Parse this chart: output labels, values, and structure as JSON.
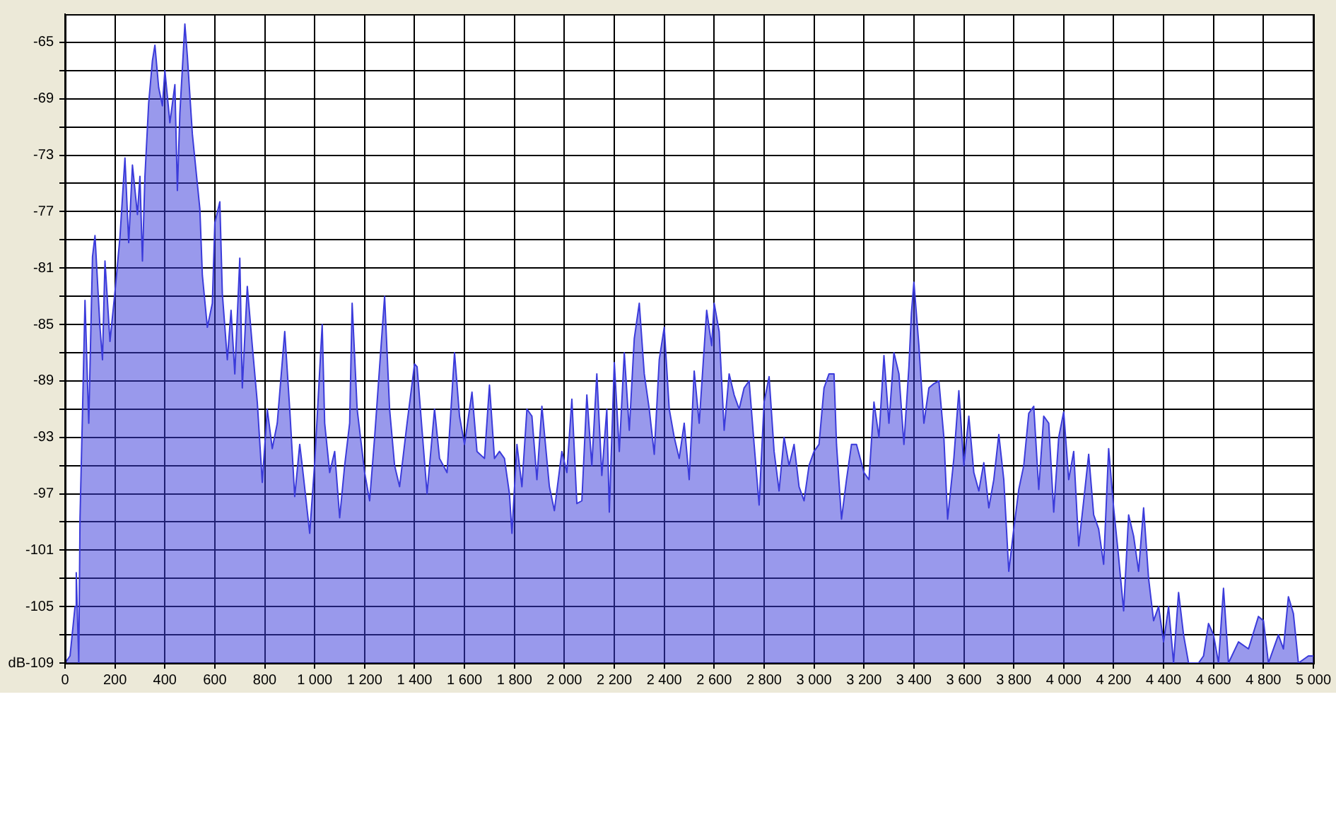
{
  "chart_data": {
    "type": "area",
    "ylabel": "dB",
    "x": [
      0,
      20,
      40,
      45,
      55,
      60,
      70,
      80,
      95,
      110,
      120,
      140,
      150,
      160,
      180,
      200,
      220,
      240,
      255,
      270,
      290,
      300,
      310,
      320,
      335,
      350,
      360,
      375,
      390,
      400,
      420,
      440,
      450,
      460,
      480,
      490,
      510,
      540,
      550,
      570,
      590,
      600,
      620,
      630,
      650,
      665,
      680,
      700,
      710,
      730,
      750,
      770,
      790,
      810,
      830,
      850,
      880,
      900,
      920,
      940,
      950,
      980,
      1000,
      1030,
      1040,
      1060,
      1080,
      1100,
      1120,
      1140,
      1150,
      1170,
      1200,
      1220,
      1240,
      1260,
      1280,
      1300,
      1320,
      1340,
      1370,
      1400,
      1410,
      1430,
      1450,
      1480,
      1500,
      1530,
      1560,
      1580,
      1600,
      1630,
      1650,
      1680,
      1700,
      1720,
      1740,
      1760,
      1780,
      1790,
      1810,
      1830,
      1850,
      1870,
      1890,
      1910,
      1940,
      1960,
      1990,
      2010,
      2030,
      2050,
      2070,
      2090,
      2110,
      2130,
      2150,
      2170,
      2180,
      2200,
      2220,
      2240,
      2260,
      2280,
      2300,
      2320,
      2340,
      2360,
      2380,
      2400,
      2420,
      2440,
      2460,
      2480,
      2500,
      2520,
      2540,
      2570,
      2590,
      2600,
      2620,
      2640,
      2660,
      2680,
      2700,
      2720,
      2740,
      2760,
      2780,
      2800,
      2820,
      2840,
      2860,
      2880,
      2900,
      2920,
      2940,
      2960,
      2980,
      3000,
      3020,
      3040,
      3060,
      3080,
      3090,
      3110,
      3130,
      3150,
      3170,
      3200,
      3220,
      3240,
      3260,
      3280,
      3300,
      3320,
      3340,
      3360,
      3380,
      3390,
      3400,
      3420,
      3440,
      3460,
      3480,
      3500,
      3520,
      3535,
      3560,
      3580,
      3600,
      3620,
      3640,
      3660,
      3680,
      3700,
      3720,
      3740,
      3760,
      3780,
      3800,
      3820,
      3840,
      3860,
      3880,
      3900,
      3920,
      3940,
      3960,
      3980,
      4000,
      4020,
      4040,
      4060,
      4080,
      4100,
      4120,
      4140,
      4160,
      4180,
      4200,
      4220,
      4240,
      4260,
      4280,
      4300,
      4320,
      4340,
      4360,
      4380,
      4400,
      4420,
      4440,
      4460,
      4480,
      4500,
      4540,
      4560,
      4580,
      4600,
      4620,
      4640,
      4660,
      4700,
      4740,
      4780,
      4800,
      4820,
      4860,
      4880,
      4900,
      4920,
      4940,
      4980,
      5000
    ],
    "series": [
      {
        "color": "#3b3bdb",
        "values": [
          -109,
          -108.5,
          -105,
          -102.6,
          -109,
          -98.7,
          -91.2,
          -83.3,
          -92,
          -80.2,
          -78.7,
          -85.2,
          -87.5,
          -80.5,
          -86.2,
          -82.7,
          -78.8,
          -73.2,
          -79.2,
          -73.7,
          -77.2,
          -74.5,
          -80.5,
          -74.5,
          -69.3,
          -66.3,
          -65.2,
          -68.2,
          -69.5,
          -67,
          -70.7,
          -68,
          -75.5,
          -70,
          -63.7,
          -66,
          -71.5,
          -76.8,
          -81.5,
          -85.2,
          -83.5,
          -77.8,
          -76.3,
          -82.8,
          -87.5,
          -84,
          -88.5,
          -80.3,
          -89.5,
          -82.3,
          -86.5,
          -90.5,
          -96.2,
          -91,
          -93.8,
          -92,
          -85.5,
          -91,
          -97.2,
          -93.5,
          -95,
          -99.8,
          -94.8,
          -85,
          -92,
          -95.5,
          -94,
          -98.7,
          -95,
          -92,
          -83.5,
          -91,
          -95.5,
          -97.5,
          -93,
          -88,
          -83,
          -91,
          -95,
          -96.5,
          -92,
          -87.8,
          -88,
          -92.5,
          -97,
          -91,
          -94.5,
          -95.5,
          -87,
          -91.5,
          -93.5,
          -89.8,
          -94,
          -94.5,
          -89.3,
          -94.5,
          -94,
          -94.5,
          -97,
          -99.8,
          -93.5,
          -96.5,
          -91,
          -91.5,
          -96,
          -90.8,
          -96.5,
          -98.2,
          -94,
          -95.5,
          -90.3,
          -97.7,
          -97.5,
          -90,
          -95,
          -88.5,
          -95.7,
          -91,
          -98.3,
          -87.7,
          -94,
          -87,
          -92.5,
          -86,
          -83.5,
          -88.5,
          -91,
          -94.2,
          -87.5,
          -85.2,
          -91,
          -93,
          -94.5,
          -92,
          -96,
          -88.3,
          -92,
          -84,
          -86.5,
          -83.5,
          -85.5,
          -92.5,
          -88.5,
          -90,
          -91,
          -89.5,
          -89,
          -93.5,
          -97.8,
          -90.5,
          -88.7,
          -94,
          -96.8,
          -93,
          -95,
          -93.5,
          -96.5,
          -97.5,
          -95,
          -94,
          -93.5,
          -89.5,
          -88.5,
          -88.5,
          -93.5,
          -98.8,
          -96,
          -93.5,
          -93.5,
          -95.5,
          -96,
          -90.5,
          -93,
          -87.2,
          -92,
          -87,
          -88.5,
          -93.5,
          -88,
          -84.2,
          -82,
          -86.5,
          -92,
          -89.5,
          -89.2,
          -89,
          -93,
          -98.8,
          -94.5,
          -89.7,
          -95,
          -91.5,
          -95.5,
          -96.8,
          -94.8,
          -98,
          -96,
          -92.8,
          -96,
          -102.5,
          -99.5,
          -96.7,
          -95,
          -91.3,
          -90.8,
          -96.7,
          -91.5,
          -92,
          -98.3,
          -93,
          -91.2,
          -96,
          -94,
          -100.7,
          -97.5,
          -94.2,
          -98.5,
          -99.5,
          -102,
          -93.8,
          -98,
          -101.5,
          -105.3,
          -98.5,
          -100,
          -102.5,
          -98,
          -103,
          -106,
          -105,
          -107.5,
          -105,
          -109,
          -104,
          -107,
          -109,
          -109,
          -108.5,
          -106.2,
          -107,
          -109,
          -103.7,
          -109,
          -107.5,
          -108,
          -105.7,
          -106,
          -109,
          -107,
          -108,
          -104.3,
          -105.5,
          -109,
          -108.5,
          -108.5
        ]
      }
    ],
    "xlim": [
      0,
      5000
    ],
    "ylim": [
      -109,
      -63
    ],
    "xticks": [
      0,
      200,
      400,
      600,
      800,
      {
        "value": 1000,
        "label": "1 000"
      },
      {
        "value": 1200,
        "label": "1 200"
      },
      {
        "value": 1400,
        "label": "1 400"
      },
      {
        "value": 1600,
        "label": "1 600"
      },
      {
        "value": 1800,
        "label": "1 800"
      },
      {
        "value": 2000,
        "label": "2 000"
      },
      {
        "value": 2200,
        "label": "2 200"
      },
      {
        "value": 2400,
        "label": "2 400"
      },
      {
        "value": 2600,
        "label": "2 600"
      },
      {
        "value": 2800,
        "label": "2 800"
      },
      {
        "value": 3000,
        "label": "3 000"
      },
      {
        "value": 3200,
        "label": "3 200"
      },
      {
        "value": 3400,
        "label": "3 400"
      },
      {
        "value": 3600,
        "label": "3 600"
      },
      {
        "value": 3800,
        "label": "3 800"
      },
      {
        "value": 4000,
        "label": "4 000"
      },
      {
        "value": 4200,
        "label": "4 200"
      },
      {
        "value": 4400,
        "label": "4 400"
      },
      {
        "value": 4600,
        "label": "4 600"
      },
      {
        "value": 4800,
        "label": "4 800"
      },
      {
        "value": 5000,
        "label": "5 000"
      }
    ],
    "yticks": [
      -109,
      {
        "value": -107,
        "label": null
      },
      -105,
      {
        "value": -103,
        "label": null
      },
      -101,
      {
        "value": -99,
        "label": null
      },
      -97,
      {
        "value": -95,
        "label": null
      },
      -93,
      {
        "value": -91,
        "label": null
      },
      -89,
      {
        "value": -87,
        "label": null
      },
      -85,
      {
        "value": -83,
        "label": null
      },
      -81,
      {
        "value": -79,
        "label": null
      },
      -77,
      {
        "value": -75,
        "label": null
      },
      -73,
      {
        "value": -71,
        "label": null
      },
      -69,
      {
        "value": -67,
        "label": null
      },
      -65
    ],
    "grid": true,
    "legend": false,
    "marker": "none",
    "line_style": "solid"
  }
}
